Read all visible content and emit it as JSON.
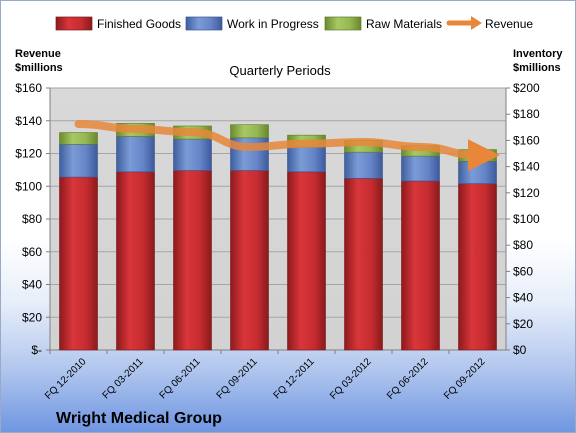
{
  "chart_data": {
    "type": "bar",
    "title": "Quarterly Periods",
    "company": "Wright Medical Group",
    "left_axis_label": [
      "Revenue",
      "$millions"
    ],
    "right_axis_label": [
      "Inventory",
      "$millions"
    ],
    "categories": [
      "FQ 12-2010",
      "FQ 03-2011",
      "FQ 06-2011",
      "FQ 09-2011",
      "FQ 12-2011",
      "FQ 03-2012",
      "FQ 06-2012",
      "FQ 09-2012"
    ],
    "left_ticks": [
      "$-",
      "$20",
      "$40",
      "$60",
      "$80",
      "$100",
      "$120",
      "$140",
      "$160"
    ],
    "right_ticks": [
      "$0",
      "$20",
      "$40",
      "$60",
      "$80",
      "$100",
      "$120",
      "$140",
      "$160",
      "$180",
      "$200"
    ],
    "left_ylim": [
      0,
      160
    ],
    "right_ylim": [
      0,
      200
    ],
    "series": [
      {
        "name": "Finished Goods",
        "axis": "right",
        "color": "#c0282b",
        "values": [
          132,
          136,
          137,
          137,
          136,
          131,
          129,
          127
        ]
      },
      {
        "name": "Work in Progress",
        "axis": "right",
        "color": "#5a7bc0",
        "values": [
          25,
          27,
          24,
          25,
          19,
          20,
          19,
          17
        ]
      },
      {
        "name": "Raw Materials",
        "axis": "right",
        "color": "#8fb04a",
        "values": [
          9,
          10,
          10,
          10,
          9,
          9,
          8,
          9
        ]
      },
      {
        "name": "Revenue",
        "axis": "left",
        "type": "line",
        "color": "#e8873a",
        "values": [
          138,
          135,
          133,
          124,
          126,
          127,
          124,
          119
        ]
      }
    ],
    "grid": true,
    "legend_position": "top"
  }
}
